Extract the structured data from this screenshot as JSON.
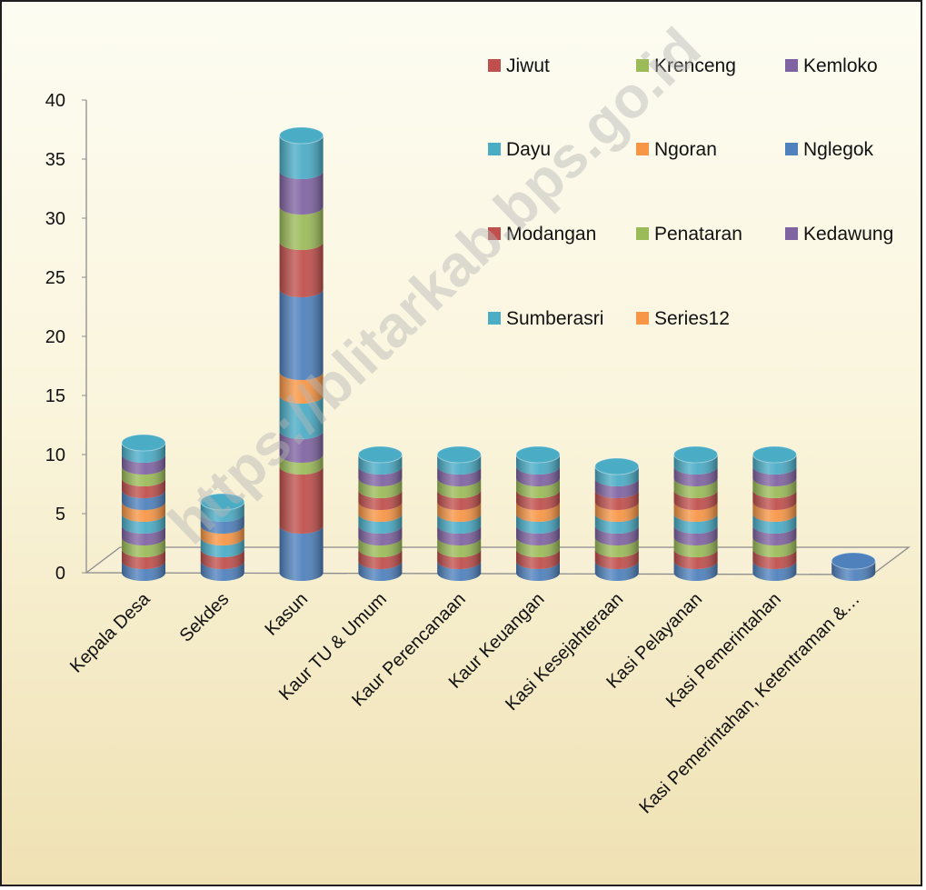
{
  "chart_data": {
    "type": "bar",
    "stacked": true,
    "style": "3d-cylinder",
    "ylim": [
      0,
      40
    ],
    "yticks": [
      0,
      5,
      10,
      15,
      20,
      25,
      30,
      35,
      40
    ],
    "grid": false,
    "legend_position": "top-right",
    "categories": [
      "Kepala Desa",
      "Sekdes",
      "Kasun",
      "Kaur TU & Umum",
      "Kaur Perencanaan",
      "Kaur Keuangan",
      "Kasi Kesejahteraan",
      "Kasi Pelayanan",
      "Kasi Pemerintahan",
      "Kasi Pemerintahan, Ketentraman &…"
    ],
    "series": [
      {
        "name": "Jiwut",
        "color": "#c0504d",
        "values": [
          1,
          1,
          5,
          1,
          1,
          1,
          1,
          1,
          1,
          0
        ]
      },
      {
        "name": "Krenceng",
        "color": "#9bbb59",
        "values": [
          1,
          0,
          1,
          1,
          1,
          1,
          1,
          1,
          1,
          0
        ]
      },
      {
        "name": "Kemloko",
        "color": "#8064a2",
        "values": [
          1,
          0,
          2,
          1,
          1,
          1,
          1,
          1,
          1,
          0
        ]
      },
      {
        "name": "Dayu",
        "color": "#4bacc6",
        "values": [
          1,
          1,
          3,
          1,
          1,
          1,
          1,
          1,
          1,
          0
        ]
      },
      {
        "name": "Ngoran",
        "color": "#f79646",
        "values": [
          1,
          1,
          2,
          1,
          1,
          1,
          1,
          1,
          1,
          0
        ]
      },
      {
        "name": "Nglegok",
        "color": "#4f81bd",
        "values": [
          1,
          1,
          7,
          0,
          0,
          0,
          0,
          0,
          0,
          0
        ]
      },
      {
        "name": "Modangan",
        "color": "#c0504d",
        "values": [
          1,
          0,
          4,
          1,
          1,
          1,
          1,
          1,
          1,
          0
        ]
      },
      {
        "name": "Penataran",
        "color": "#9bbb59",
        "values": [
          1,
          0,
          3,
          1,
          1,
          1,
          0,
          1,
          1,
          0
        ]
      },
      {
        "name": "Kedawung",
        "color": "#8064a2",
        "values": [
          1,
          0,
          3,
          1,
          1,
          1,
          1,
          1,
          1,
          0
        ]
      },
      {
        "name": "Sumberasri",
        "color": "#4bacc6",
        "values": [
          1,
          1,
          3,
          1,
          1,
          1,
          1,
          1,
          1,
          0
        ]
      },
      {
        "name": "Series12",
        "color": "#f79646",
        "values": [
          0,
          0,
          0,
          0,
          0,
          0,
          0,
          0,
          0,
          0
        ]
      }
    ],
    "base_series": {
      "color": "#4f81bd",
      "values": [
        1,
        1,
        4,
        1,
        1,
        1,
        1,
        1,
        1,
        1
      ]
    }
  },
  "watermark": "https://blitarkab.bps.go.id"
}
